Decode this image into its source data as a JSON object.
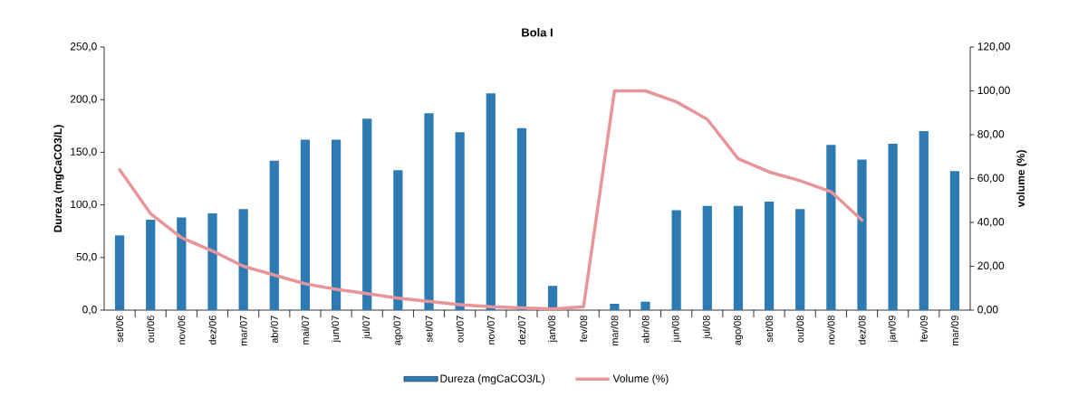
{
  "chart_data": {
    "type": "bar",
    "title": "Bola I",
    "ylabel": "Dureza (mgCaCO3/L)",
    "y2label": "volume (%)",
    "categories": [
      "set/06",
      "out/06",
      "nov/06",
      "dez/06",
      "mar/07",
      "abr/07",
      "mai/07",
      "jun/07",
      "jul/07",
      "ago/07",
      "set/07",
      "out/07",
      "nov/07",
      "dez/07",
      "jan/08",
      "fev/08",
      "mar/08",
      "abr/08",
      "jun/08",
      "jul/08",
      "ago/08",
      "set/08",
      "out/08",
      "nov/08",
      "dez/08",
      "jan/09",
      "fev/09",
      "mar/09"
    ],
    "series": [
      {
        "name": "Dureza (mgCaCO3/L)",
        "color": "#2e7bb4",
        "values": [
          71,
          86,
          88,
          92,
          96,
          142,
          162,
          162,
          182,
          133,
          187,
          169,
          206,
          173,
          23,
          null,
          6,
          8,
          95,
          99,
          99,
          103,
          96,
          157,
          143,
          158,
          170,
          132
        ]
      },
      {
        "name": "Volume (%)",
        "type": "line",
        "axis": "y2",
        "color": "#e8959a",
        "values": [
          64,
          44,
          33,
          27,
          20,
          16,
          12,
          9.5,
          7.5,
          5.5,
          4,
          2.5,
          1.5,
          1,
          0.5,
          1.5,
          100,
          100,
          95,
          87,
          69,
          63,
          59,
          54,
          41,
          null,
          null,
          null
        ]
      }
    ],
    "ylim": [
      0,
      250
    ],
    "yticks": [
      {
        "value": 0,
        "label": "0,0"
      },
      {
        "value": 50,
        "label": "50,0"
      },
      {
        "value": 100,
        "label": "100,0"
      },
      {
        "value": 150,
        "label": "150,0"
      },
      {
        "value": 200,
        "label": "200,0"
      },
      {
        "value": 250,
        "label": "250,0"
      }
    ],
    "y2lim": [
      0,
      120
    ],
    "y2ticks": [
      {
        "value": 0,
        "label": "0,00"
      },
      {
        "value": 20,
        "label": "20,00"
      },
      {
        "value": 40,
        "label": "40,00"
      },
      {
        "value": 60,
        "label": "60,00"
      },
      {
        "value": 80,
        "label": "80,00"
      },
      {
        "value": 100,
        "label": "100,00"
      },
      {
        "value": 120,
        "label": "120,00"
      }
    ],
    "legend": "bottom"
  }
}
